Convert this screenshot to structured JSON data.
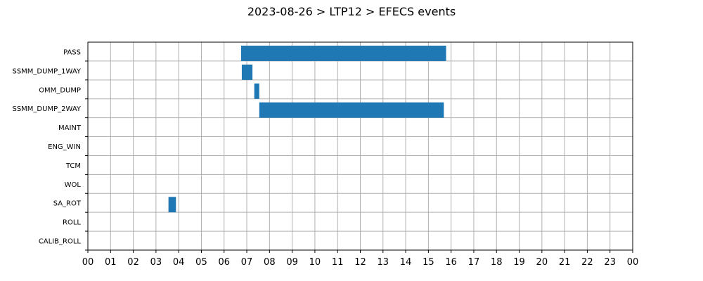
{
  "chart_data": {
    "type": "bar",
    "orientation": "horizontal",
    "title": "2023-08-26 > LTP12 > EFECS events",
    "xlabel": "",
    "ylabel": "",
    "xlim": [
      0,
      24
    ],
    "x_ticks": [
      "00",
      "01",
      "02",
      "03",
      "04",
      "05",
      "06",
      "07",
      "08",
      "09",
      "10",
      "11",
      "12",
      "13",
      "14",
      "15",
      "16",
      "17",
      "18",
      "19",
      "20",
      "21",
      "22",
      "23",
      "00"
    ],
    "categories": [
      "PASS",
      "SSMM_DUMP_1WAY",
      "OMM_DUMP",
      "SSMM_DUMP_2WAY",
      "MAINT",
      "ENG_WIN",
      "TCM",
      "WOL",
      "SA_ROT",
      "ROLL",
      "CALIB_ROLL"
    ],
    "series": [
      {
        "intervals": [
          {
            "category": "PASS",
            "start": 6.75,
            "end": 15.78
          },
          {
            "category": "SSMM_DUMP_1WAY",
            "start": 6.78,
            "end": 7.25
          },
          {
            "category": "OMM_DUMP",
            "start": 7.33,
            "end": 7.55
          },
          {
            "category": "SSMM_DUMP_2WAY",
            "start": 7.55,
            "end": 15.68
          },
          {
            "category": "SA_ROT",
            "start": 3.55,
            "end": 3.88
          }
        ]
      }
    ],
    "grid": true,
    "bar_color": "#1f77b4"
  }
}
